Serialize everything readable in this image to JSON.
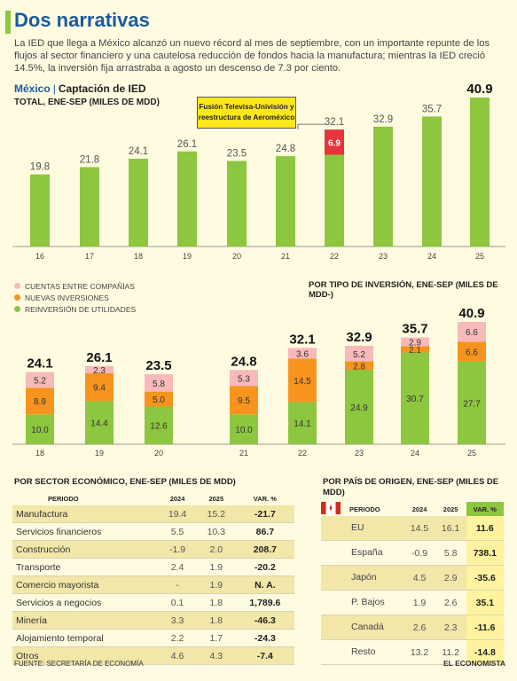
{
  "header": {
    "title": "Dos narrativas",
    "lead": "La IED que llega a México alcanzó un nuevo récord al mes de septiembre, con un importante repunte de los flujos al sector financiero y una cautelosa reducción de fondos hacia la manufactura; mientras la IED creció 14.5%, la inversión fija arrastraba a agosto un descenso de 7.3 por ciento.",
    "section_country": "México",
    "section_name": "Captación de IED",
    "subtitle_total": "TOTAL, ENE-SEP (MILES DE MDD)",
    "annotation": "Fusión Televisa-Univisión y reestructura de Aeroméxico",
    "subtitle_type": "POR TIPO DE INVERSIÓN, ENE-SEP (MILES DE MDD-)"
  },
  "colors": {
    "green": "#8dc63f",
    "orange": "#f7941d",
    "pink": "#f7b9b9",
    "red": "#e8353b",
    "blue": "#1a5aa0",
    "yellow": "#ffe81a"
  },
  "chart_data": [
    {
      "type": "bar",
      "title": "TOTAL, ENE-SEP (MILES DE MDD)",
      "categories": [
        "16",
        "17",
        "18",
        "19",
        "20",
        "21",
        "22",
        "23",
        "24",
        "25"
      ],
      "values": [
        19.8,
        21.8,
        24.1,
        26.1,
        23.5,
        24.8,
        32.1,
        32.9,
        35.7,
        40.9
      ],
      "highlight": {
        "category": "22",
        "value": 6.9
      },
      "ylim": [
        0,
        42
      ]
    },
    {
      "type": "bar",
      "stacked": true,
      "title": "POR TIPO DE INVERSIÓN, ENE-SEP (MILES DE MDD-)",
      "categories": [
        "18",
        "19",
        "20",
        "21",
        "22",
        "23",
        "24",
        "25"
      ],
      "totals": [
        24.1,
        26.1,
        23.5,
        24.8,
        32.1,
        32.9,
        35.7,
        40.9
      ],
      "series": [
        {
          "name": "REINVERSIÓN DE UTILIDADES",
          "values": [
            10.0,
            14.4,
            12.6,
            10.0,
            14.1,
            24.9,
            30.7,
            27.7
          ]
        },
        {
          "name": "NUEVAS INVERSIONES",
          "values": [
            8.9,
            9.4,
            5.0,
            9.5,
            14.5,
            2.8,
            2.1,
            6.6
          ]
        },
        {
          "name": "CUENTAS ENTRE COMPAÑÍAS",
          "values": [
            5.2,
            2.3,
            5.8,
            5.3,
            3.6,
            5.2,
            2.9,
            6.6
          ]
        }
      ],
      "legend": "top-left"
    }
  ],
  "sector_table": {
    "title": "POR SECTOR ECONÓMICO, ENE-SEP (MILES DE MDD)",
    "headers": [
      "PERIODO",
      "2024",
      "2025",
      "VAR. %"
    ],
    "rows": [
      {
        "label": "Manufactura",
        "v2024": "19.4",
        "v2025": "15.2",
        "var": "-21.7"
      },
      {
        "label": "Servicios financieros",
        "v2024": "5.5",
        "v2025": "10.3",
        "var": "86.7"
      },
      {
        "label": "Construcción",
        "v2024": "-1.9",
        "v2025": "2.0",
        "var": "208.7"
      },
      {
        "label": "Transporte",
        "v2024": "2.4",
        "v2025": "1.9",
        "var": "-20.2"
      },
      {
        "label": "Comercio mayorista",
        "v2024": "-",
        "v2025": "1.9",
        "var": "N. A."
      },
      {
        "label": "Servicios a negocios",
        "v2024": "0.1",
        "v2025": "1.8",
        "var": "1,789.6"
      },
      {
        "label": "Minería",
        "v2024": "3.3",
        "v2025": "1.8",
        "var": "-46.3"
      },
      {
        "label": "Alojamiento temporal",
        "v2024": "2.2",
        "v2025": "1.7",
        "var": "-24.3"
      },
      {
        "label": "Otros",
        "v2024": "4.6",
        "v2025": "4.3",
        "var": "-7.4"
      }
    ]
  },
  "country_table": {
    "title": "POR PAÍS DE ORIGEN, ENE-SEP (MILES DE MDD)",
    "headers": [
      "PERIODO",
      "2024",
      "2025",
      "VAR. %"
    ],
    "rows": [
      {
        "flag": "usa-flag",
        "label": "EU",
        "v2024": "14.5",
        "v2025": "16.1",
        "var": "11.6"
      },
      {
        "flag": "spain-flag",
        "label": "España",
        "v2024": "-0.9",
        "v2025": "5.8",
        "var": "738.1"
      },
      {
        "flag": "japan-flag",
        "label": "Japón",
        "v2024": "4.5",
        "v2025": "2.9",
        "var": "-35.6"
      },
      {
        "flag": "netherlands-flag",
        "label": "P. Bajos",
        "v2024": "1.9",
        "v2025": "2.6",
        "var": "35.1"
      },
      {
        "flag": "canada-flag",
        "label": "Canadá",
        "v2024": "2.6",
        "v2025": "2.3",
        "var": "-11.6"
      },
      {
        "flag": "",
        "label": "Resto",
        "v2024": "13.2",
        "v2025": "11.2",
        "var": "-14.8"
      }
    ]
  },
  "footer": {
    "source": "FUENTE: SECRETARÍA DE ECONOMÍA",
    "logo": "EL ECONOMISTA"
  }
}
